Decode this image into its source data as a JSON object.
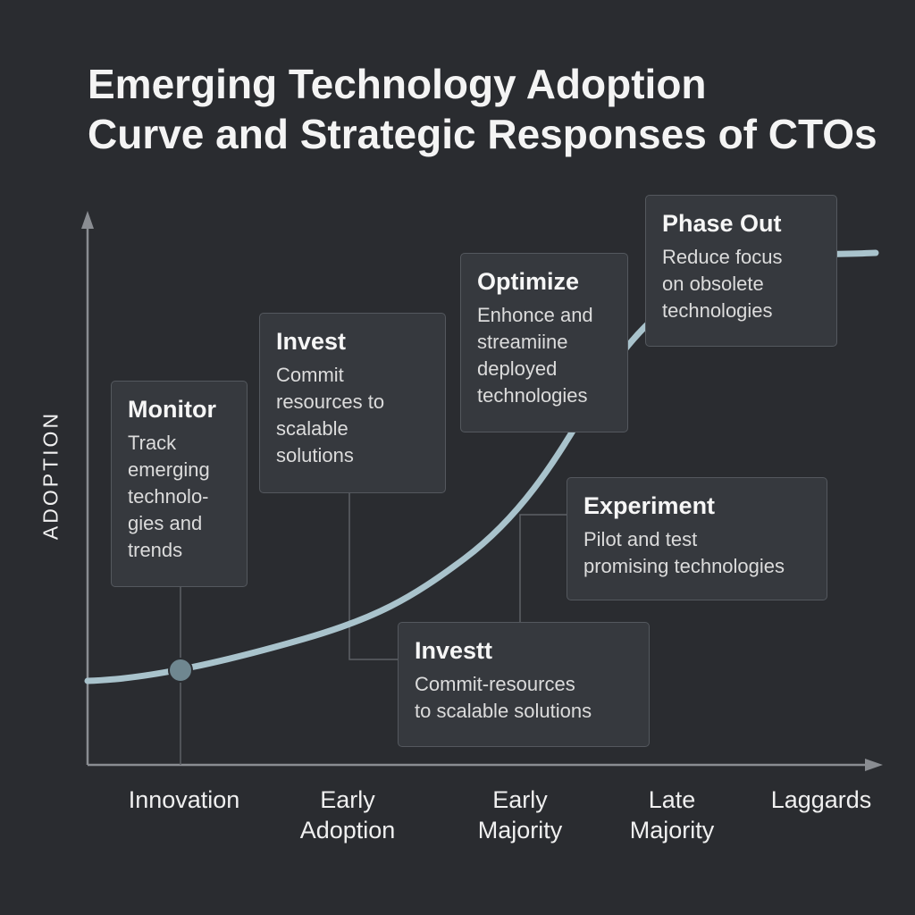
{
  "title": {
    "line1": "Emerging Technology Adoption",
    "line2": "Curve and Strategic Responses of CTOs"
  },
  "y_axis_label": "ADOPTION",
  "stages": [
    {
      "label": "Innovation"
    },
    {
      "label": "Early\nAdoption"
    },
    {
      "label": "Early\nMajority"
    },
    {
      "label": "Late\nMajority"
    },
    {
      "label": "Laggards"
    }
  ],
  "cards": {
    "monitor": {
      "title": "Monitor",
      "body": "Track\nemerging\ntechnolo-\ngies and\ntrends"
    },
    "invest": {
      "title": "Invest",
      "body": "Commit\nresources to\nscalable\nsolutions"
    },
    "optimize": {
      "title": "Optimize",
      "body": "Enhonce and\nstreamiine\ndeployed\ntechnologies"
    },
    "phase_out": {
      "title": "Phase Out",
      "body": "Reduce focus\non obsolete\ntechnologies"
    },
    "experiment": {
      "title": "Experiment",
      "body": "Pilot and test\npromising technologies"
    },
    "investt": {
      "title": "Investt",
      "body": "Commit-resources\nto scalable solutions"
    }
  },
  "colors": {
    "background": "#2a2c30",
    "curve": "#a9c3cc",
    "axis": "#8a8d92",
    "card": "#36393e",
    "marker": "#6f8790"
  }
}
